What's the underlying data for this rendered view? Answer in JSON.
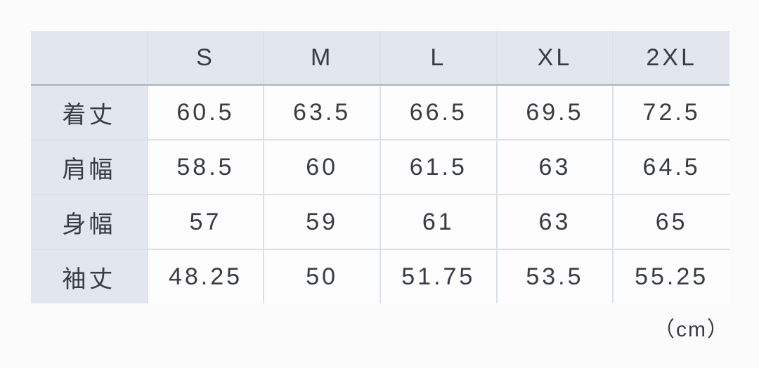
{
  "page": {
    "background": "#fbfbfb",
    "unit_label": "（cm）"
  },
  "colors": {
    "header_bg": "#e2e7ee",
    "cell_bg": "#fdfdfe",
    "border_light": "#dbe1e9",
    "border_header_bottom": "#aab3bf",
    "text": "#383c42"
  },
  "table": {
    "columns": [
      "",
      "S",
      "M",
      "L",
      "XL",
      "2XL"
    ],
    "rows": [
      {
        "label": "着丈",
        "values": [
          "60.5",
          "63.5",
          "66.5",
          "69.5",
          "72.5"
        ]
      },
      {
        "label": "肩幅",
        "values": [
          "58.5",
          "60",
          "61.5",
          "63",
          "64.5"
        ]
      },
      {
        "label": "身幅",
        "values": [
          "57",
          "59",
          "61",
          "63",
          "65"
        ]
      },
      {
        "label": "袖丈",
        "values": [
          "48.25",
          "50",
          "51.75",
          "53.5",
          "55.25"
        ]
      }
    ]
  },
  "chart_data": {
    "type": "table",
    "title": "",
    "unit": "cm",
    "categories": [
      "S",
      "M",
      "L",
      "XL",
      "2XL"
    ],
    "series": [
      {
        "name": "着丈",
        "values": [
          60.5,
          63.5,
          66.5,
          69.5,
          72.5
        ]
      },
      {
        "name": "肩幅",
        "values": [
          58.5,
          60,
          61.5,
          63,
          64.5
        ]
      },
      {
        "name": "身幅",
        "values": [
          57,
          59,
          61,
          63,
          65
        ]
      },
      {
        "name": "袖丈",
        "values": [
          48.25,
          50,
          51.75,
          53.5,
          55.25
        ]
      }
    ],
    "annotations": [
      "（cm）"
    ]
  }
}
